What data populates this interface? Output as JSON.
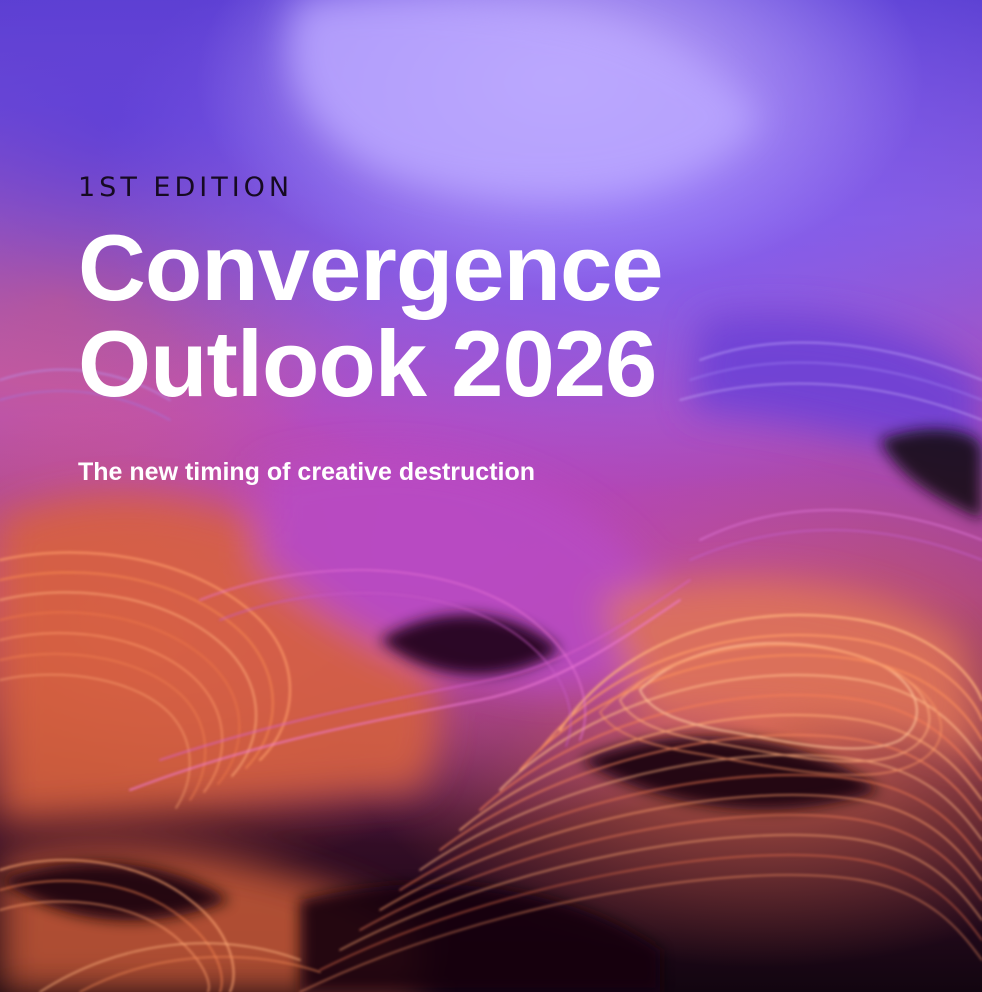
{
  "cover": {
    "edition": "1ST EDITION",
    "title_line1": "Convergence",
    "title_line2": "Outlook 2026",
    "subtitle": "The new timing of creative destruction"
  },
  "colors": {
    "violet": "#7a5cf2",
    "magenta": "#c24fc0",
    "orange": "#f08a50",
    "dark": "#120510",
    "title_text": "#ffffff",
    "edition_text": "#160a22"
  }
}
